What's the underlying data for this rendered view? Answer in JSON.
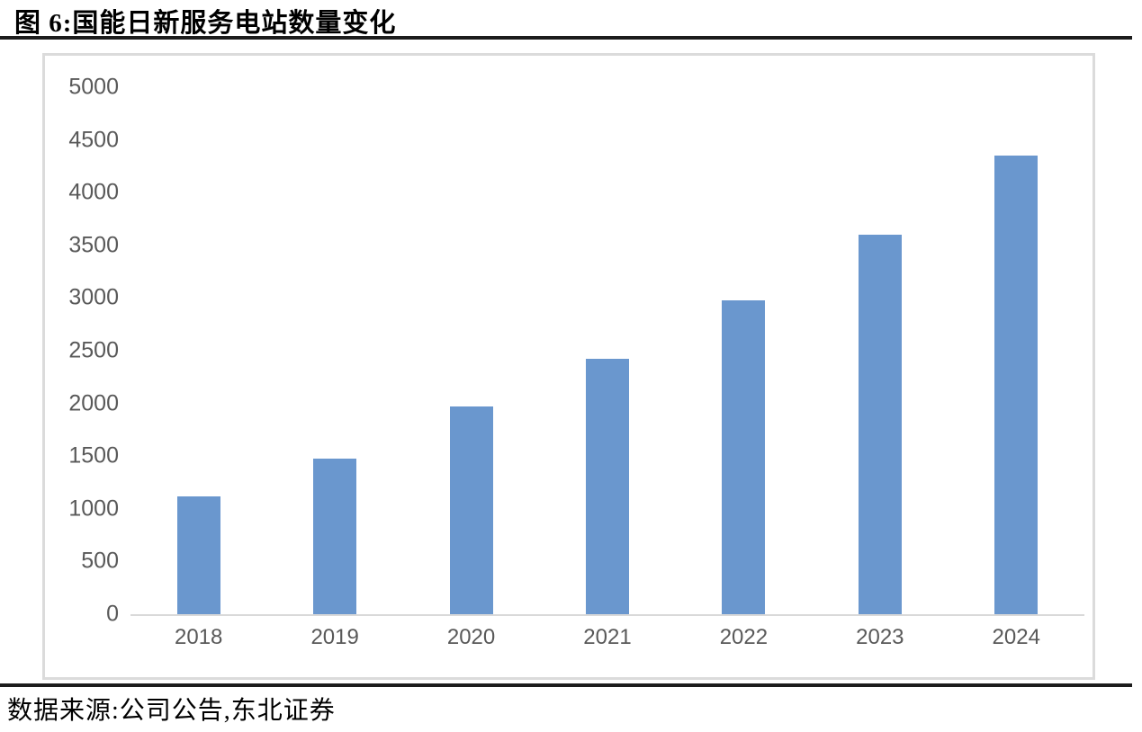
{
  "figure": {
    "label": "图 6:",
    "title": "图 6:国能日新服务电站数量变化",
    "source": "数据来源:公司公告,东北证券"
  },
  "chart_data": {
    "type": "bar",
    "title": "国能日新服务电站数量变化",
    "categories": [
      "2018",
      "2019",
      "2020",
      "2021",
      "2022",
      "2023",
      "2024"
    ],
    "values": [
      1120,
      1480,
      1975,
      2420,
      2975,
      3605,
      4350
    ],
    "xlabel": "",
    "ylabel": "",
    "ylim": [
      0,
      5000
    ],
    "yticks": [
      5000,
      4500,
      4000,
      3500,
      3000,
      2500,
      2000,
      1500,
      1000,
      500,
      0
    ],
    "grid": false,
    "legend": false,
    "bar_color": "#6a97ce",
    "axis_line_color": "#d9d9d9",
    "tick_label_color": "#595959",
    "frame_border_color": "#dbdbdb"
  }
}
